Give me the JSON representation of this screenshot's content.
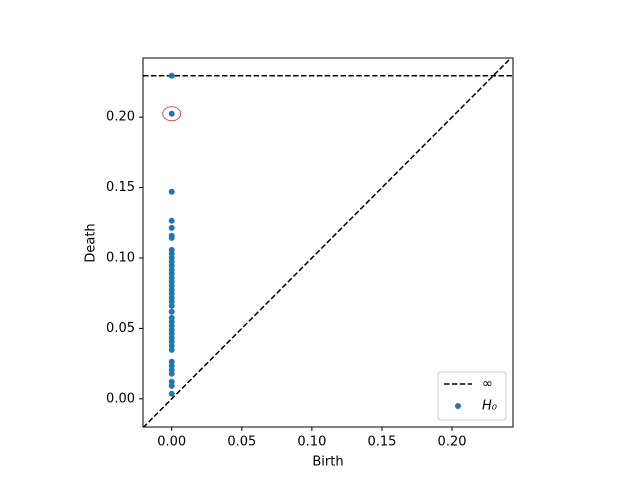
{
  "chart_data": {
    "type": "scatter",
    "xlabel": "Birth",
    "ylabel": "Death",
    "xlim": [
      -0.0205,
      0.2435
    ],
    "ylim": [
      -0.02,
      0.242
    ],
    "xticks": [
      {
        "value": 0,
        "label": "0.00"
      },
      {
        "value": 0.05,
        "label": "0.05"
      },
      {
        "value": 0.1,
        "label": "0.10"
      },
      {
        "value": 0.15,
        "label": "0.15"
      },
      {
        "value": 0.2,
        "label": "0.20"
      }
    ],
    "yticks": [
      {
        "value": 0,
        "label": "0.00"
      },
      {
        "value": 0.05,
        "label": "0.05"
      },
      {
        "value": 0.1,
        "label": "0.10"
      },
      {
        "value": 0.15,
        "label": "0.15"
      },
      {
        "value": 0.2,
        "label": "0.20"
      }
    ],
    "diagonal": true,
    "infinity_line": {
      "name": "∞",
      "value": 0.2294,
      "color": "#000000"
    },
    "legend": "lower right",
    "highlighted": [
      1
    ],
    "highlight_color": "#d62728",
    "series": [
      {
        "name": "H₀",
        "color": "#1f77b4",
        "x": [
          0,
          0,
          0,
          0,
          0,
          0,
          0,
          0,
          0,
          0,
          0,
          0,
          0,
          0,
          0,
          0,
          0,
          0,
          0,
          0,
          0,
          0,
          0,
          0,
          0,
          0,
          0,
          0,
          0,
          0,
          0,
          0,
          0,
          0,
          0,
          0,
          0,
          0,
          0
        ],
        "values": [
          0.2294,
          0.2024,
          0.147,
          0.1264,
          0.1214,
          0.1158,
          0.1143,
          0.1058,
          0.103,
          0.1001,
          0.0973,
          0.0945,
          0.0916,
          0.0888,
          0.0859,
          0.0831,
          0.0803,
          0.0774,
          0.0746,
          0.0717,
          0.0689,
          0.066,
          0.0618,
          0.0575,
          0.0547,
          0.0518,
          0.049,
          0.0462,
          0.0433,
          0.0405,
          0.0376,
          0.0348,
          0.0263,
          0.0234,
          0.0206,
          0.0178,
          0.0121,
          0.0092,
          0.0036
        ]
      }
    ]
  }
}
